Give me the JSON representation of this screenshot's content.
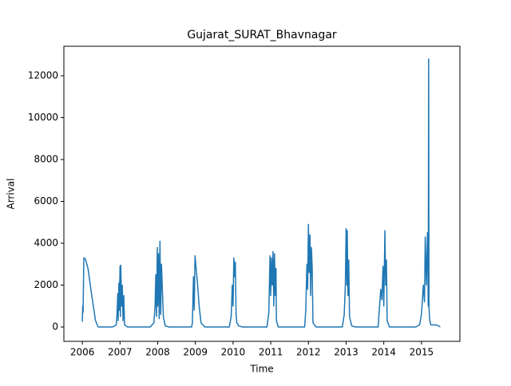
{
  "chart_data": {
    "type": "line",
    "title": "Gujarat_SURAT_Bhavnagar",
    "xlabel": "Time",
    "ylabel": "Arrival",
    "x": [
      2006.0,
      2006.01,
      2006.02,
      2006.04,
      2006.08,
      2006.15,
      2006.25,
      2006.35,
      2006.42,
      2006.8,
      2006.9,
      2006.92,
      2006.94,
      2006.95,
      2006.97,
      2006.98,
      2007.0,
      2007.01,
      2007.02,
      2007.04,
      2007.06,
      2007.08,
      2007.1,
      2007.12,
      2007.2,
      2007.8,
      2007.9,
      2007.93,
      2007.95,
      2007.97,
      2007.99,
      2008.0,
      2008.02,
      2008.04,
      2008.06,
      2008.08,
      2008.1,
      2008.12,
      2008.15,
      2008.2,
      2008.3,
      2008.9,
      2008.92,
      2008.95,
      2008.97,
      2008.99,
      2009.02,
      2009.06,
      2009.1,
      2009.15,
      2009.25,
      2009.9,
      2009.95,
      2009.98,
      2010.0,
      2010.02,
      2010.04,
      2010.06,
      2010.08,
      2010.1,
      2010.15,
      2010.25,
      2010.9,
      2010.95,
      2010.98,
      2011.0,
      2011.02,
      2011.04,
      2011.06,
      2011.08,
      2011.1,
      2011.12,
      2011.14,
      2011.15,
      2011.2,
      2011.9,
      2011.93,
      2011.96,
      2011.98,
      2012.0,
      2012.02,
      2012.04,
      2012.06,
      2012.08,
      2012.1,
      2012.12,
      2012.2,
      2012.9,
      2012.95,
      2012.98,
      2013.0,
      2013.02,
      2013.03,
      2013.05,
      2013.07,
      2013.09,
      2013.15,
      2013.25,
      2013.85,
      2013.88,
      2013.92,
      2013.95,
      2013.98,
      2014.0,
      2014.03,
      2014.05,
      2014.07,
      2014.09,
      2014.15,
      2014.85,
      2014.95,
      2015.0,
      2015.05,
      2015.08,
      2015.1,
      2015.13,
      2015.16,
      2015.18,
      2015.19,
      2015.2,
      2015.22,
      2015.25,
      2015.3,
      2015.4,
      2015.45,
      2015.5
    ],
    "series": [
      {
        "name": "Arrival",
        "color": "#1f77b4",
        "values": [
          250,
          1000,
          700,
          3300,
          3250,
          2800,
          1500,
          300,
          0,
          0,
          100,
          600,
          1600,
          300,
          2100,
          800,
          2900,
          500,
          2950,
          1000,
          2000,
          300,
          1500,
          100,
          0,
          0,
          200,
          1000,
          2500,
          500,
          3800,
          1000,
          3500,
          400,
          4100,
          600,
          3000,
          2000,
          500,
          50,
          0,
          0,
          200,
          2400,
          800,
          3400,
          2800,
          2000,
          1000,
          200,
          0,
          0,
          500,
          2000,
          1000,
          3300,
          2400,
          3100,
          600,
          200,
          50,
          0,
          0,
          700,
          3400,
          1500,
          3300,
          2000,
          3600,
          1000,
          3500,
          1500,
          2800,
          300,
          0,
          0,
          800,
          3000,
          1800,
          4900,
          2600,
          4400,
          1500,
          3800,
          2800,
          200,
          0,
          0,
          600,
          2000,
          4700,
          2000,
          4600,
          1500,
          3200,
          500,
          50,
          0,
          0,
          800,
          1800,
          1300,
          2900,
          1000,
          4600,
          2000,
          3200,
          300,
          0,
          0,
          100,
          600,
          2000,
          1200,
          4300,
          2000,
          4500,
          1000,
          12800,
          900,
          300,
          100,
          100,
          100,
          50,
          0
        ]
      }
    ],
    "xlim": [
      2005.51,
      2016.02
    ],
    "ylim": [
      -686,
      13410
    ],
    "xticks": [
      2006,
      2007,
      2008,
      2009,
      2010,
      2011,
      2012,
      2013,
      2014,
      2015
    ],
    "yticks": [
      0,
      2000,
      4000,
      6000,
      8000,
      10000,
      12000
    ]
  }
}
